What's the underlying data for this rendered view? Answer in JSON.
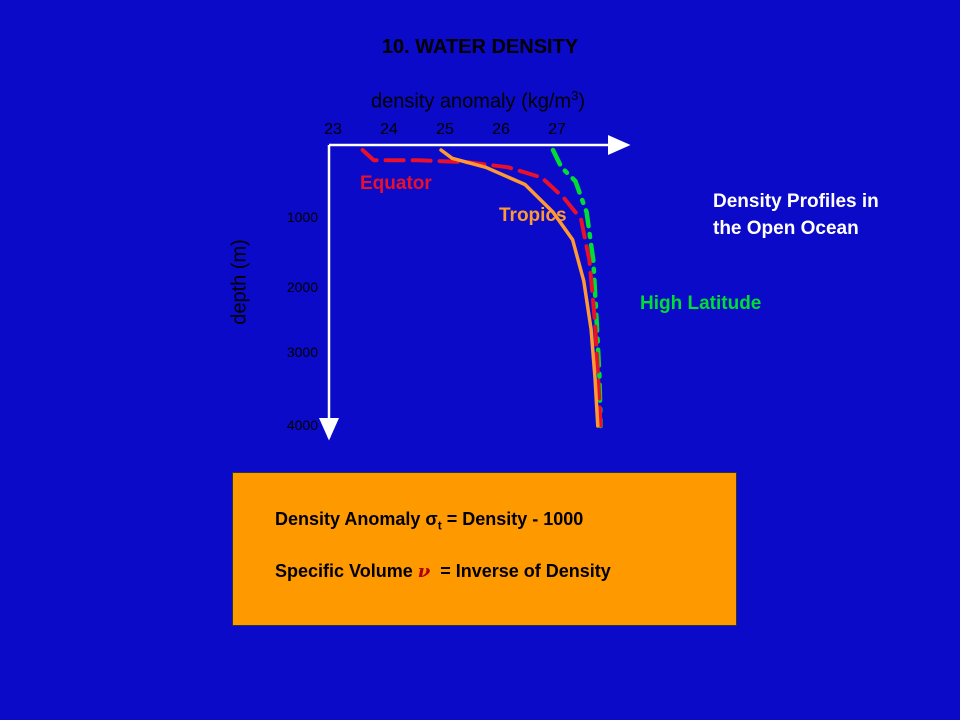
{
  "slide": {
    "title": "10. WATER DENSITY",
    "note_line1": "Density Profiles in",
    "note_line2": "the Open Ocean"
  },
  "formulas": {
    "line1_prefix": "Density Anomaly σ",
    "line1_sub": "t",
    "line1_suffix": " = Density - 1000",
    "line2_prefix": "Specific Volume ",
    "line2_symbol": "ν",
    "line2_suffix": "  = Inverse of Density"
  },
  "chart_data": {
    "type": "line",
    "x_label_main": "density anomaly (kg/m",
    "x_label_sup": "3",
    "x_label_end": ")",
    "ylabel": "depth (m)",
    "x_axis_position": "top",
    "x_ticks": [
      23,
      24,
      25,
      26,
      27
    ],
    "y_ticks": [
      1000,
      2000,
      3000,
      4000
    ],
    "xlim": [
      23,
      28
    ],
    "ylim": [
      0,
      4000
    ],
    "y_inverted": true,
    "grid": false,
    "series": [
      {
        "name": "Equator",
        "color": "#E8102A",
        "style": "dashed",
        "points": [
          [
            23.6,
            0
          ],
          [
            23.8,
            150
          ],
          [
            24.6,
            150
          ],
          [
            25.5,
            180
          ],
          [
            26.2,
            250
          ],
          [
            26.8,
            400
          ],
          [
            27.2,
            700
          ],
          [
            27.5,
            1000
          ],
          [
            27.65,
            1600
          ],
          [
            27.75,
            2500
          ],
          [
            27.82,
            3500
          ],
          [
            27.85,
            4000
          ]
        ]
      },
      {
        "name": "Tropics",
        "color": "#FF9933",
        "style": "solid",
        "points": [
          [
            25.0,
            0
          ],
          [
            25.2,
            120
          ],
          [
            25.8,
            250
          ],
          [
            26.5,
            500
          ],
          [
            27.0,
            900
          ],
          [
            27.35,
            1300
          ],
          [
            27.55,
            1900
          ],
          [
            27.68,
            2600
          ],
          [
            27.75,
            3300
          ],
          [
            27.8,
            4000
          ]
        ]
      },
      {
        "name": "High Latitude",
        "color": "#00DD33",
        "style": "dashdot",
        "points": [
          [
            27.0,
            0
          ],
          [
            27.15,
            250
          ],
          [
            27.4,
            450
          ],
          [
            27.6,
            900
          ],
          [
            27.72,
            1600
          ],
          [
            27.78,
            2500
          ],
          [
            27.83,
            3300
          ],
          [
            27.85,
            4000
          ]
        ]
      }
    ]
  }
}
